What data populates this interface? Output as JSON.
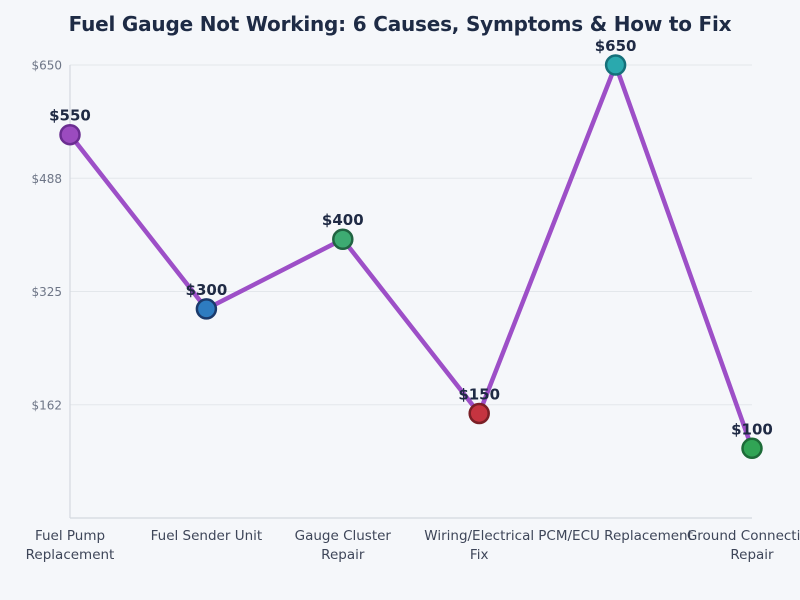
{
  "page": {
    "background": "#f5f7fa"
  },
  "chart_data": {
    "type": "line",
    "title": "Fuel Gauge Not Working: 6 Causes, Symptoms & How to Fix",
    "xlabel": "",
    "ylabel": "",
    "legend": "none",
    "grid": true,
    "ylim": [
      0,
      650
    ],
    "categories": [
      "Fuel Pump Replacement",
      "Fuel Sender Unit",
      "Gauge Cluster Repair",
      "Wiring/Electrical Fix",
      "PCM/ECU Replacement",
      "Ground Connection Repair"
    ],
    "category_lines": [
      [
        "Fuel Pump",
        "Replacement"
      ],
      [
        "Fuel Sender Unit"
      ],
      [
        "Gauge Cluster",
        "Repair"
      ],
      [
        "Wiring/Electrical",
        "Fix"
      ],
      [
        "PCM/ECU Replacement"
      ],
      [
        "Ground Connection",
        "Repair"
      ]
    ],
    "values": [
      550,
      300,
      400,
      150,
      650,
      100
    ],
    "point_labels": [
      "$550",
      "$300",
      "$400",
      "$150",
      "$650",
      "$100"
    ],
    "y_ticks": [
      {
        "value": 650,
        "label": "$650"
      },
      {
        "value": 487.5,
        "label": "$488"
      },
      {
        "value": 325,
        "label": "$325"
      },
      {
        "value": 162.5,
        "label": "$162"
      }
    ],
    "line_color": "#9d4fc7",
    "marker_fill_colors": [
      "#9b4bbf",
      "#2e7cc0",
      "#3dab72",
      "#c53440",
      "#2aa9ae",
      "#31a455"
    ],
    "marker_edge_colors": [
      "#6b2d91",
      "#1b3a6b",
      "#206341",
      "#7a1f26",
      "#15707a",
      "#1d6b38"
    ],
    "colors": {
      "title": "#1e2b45",
      "tick_label": "#6e7687",
      "category_label": "#3e4659",
      "point_label": "#1f2a44",
      "gridline": "#e3e7eb",
      "axis_line": "#d4d9df",
      "background": "#f5f7fa"
    }
  }
}
